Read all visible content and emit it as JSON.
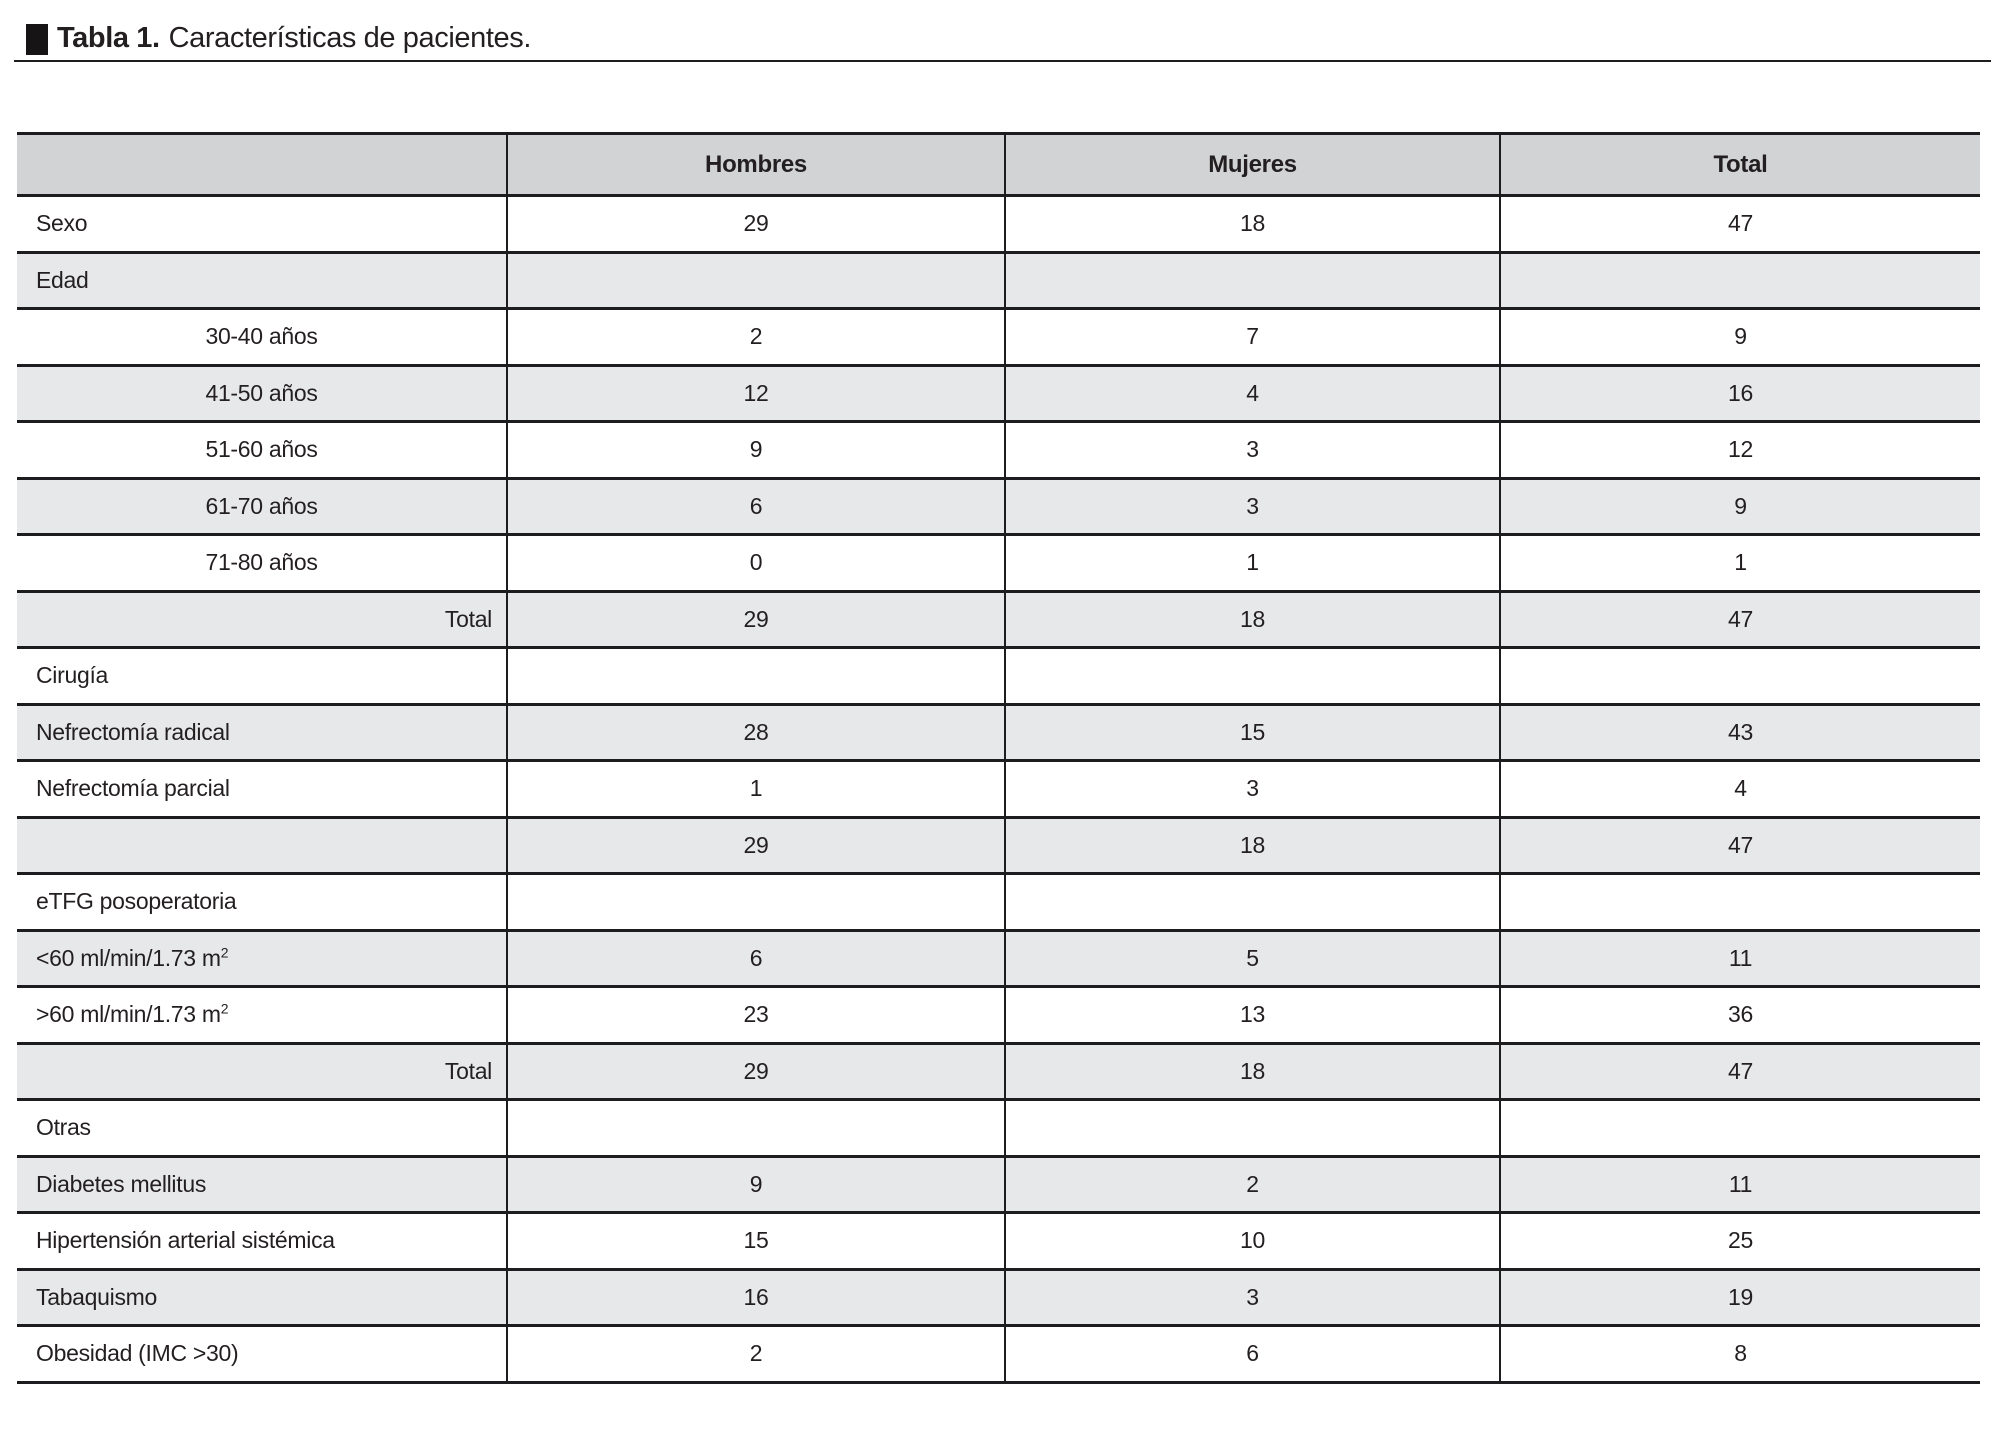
{
  "caption": {
    "number": "Tabla 1.",
    "title": "Características de pacientes."
  },
  "table": {
    "columns": [
      "",
      "Hombres",
      "Mujeres",
      "Total"
    ],
    "rows": [
      {
        "label": "Sexo",
        "align": "left",
        "values": [
          "29",
          "18",
          "47"
        ],
        "shaded": false
      },
      {
        "label": "Edad",
        "align": "left",
        "values": [
          "",
          "",
          ""
        ],
        "shaded": true
      },
      {
        "label": "30-40 años",
        "align": "center",
        "values": [
          "2",
          "7",
          "9"
        ],
        "shaded": false
      },
      {
        "label": "41-50 años",
        "align": "center",
        "values": [
          "12",
          "4",
          "16"
        ],
        "shaded": true
      },
      {
        "label": "51-60 años",
        "align": "center",
        "values": [
          "9",
          "3",
          "12"
        ],
        "shaded": false
      },
      {
        "label": "61-70 años",
        "align": "center",
        "values": [
          "6",
          "3",
          "9"
        ],
        "shaded": true
      },
      {
        "label": "71-80 años",
        "align": "center",
        "values": [
          "0",
          "1",
          "1"
        ],
        "shaded": false
      },
      {
        "label": "Total",
        "align": "right",
        "values": [
          "29",
          "18",
          "47"
        ],
        "shaded": true
      },
      {
        "label": "Cirugía",
        "align": "left",
        "values": [
          "",
          "",
          ""
        ],
        "shaded": false
      },
      {
        "label": "Nefrectomía radical",
        "align": "left",
        "values": [
          "28",
          "15",
          "43"
        ],
        "shaded": true
      },
      {
        "label": "Nefrectomía parcial",
        "align": "left",
        "values": [
          "1",
          "3",
          "4"
        ],
        "shaded": false
      },
      {
        "label": "",
        "align": "left",
        "values": [
          "29",
          "18",
          "47"
        ],
        "shaded": true
      },
      {
        "label": "eTFG posoperatoria",
        "align": "left",
        "values": [
          "",
          "",
          ""
        ],
        "shaded": false
      },
      {
        "label": "<60 ml/min/1.73 m",
        "label_sup": "2",
        "align": "left",
        "values": [
          "6",
          "5",
          "11"
        ],
        "shaded": true
      },
      {
        "label": ">60 ml/min/1.73 m",
        "label_sup": "2",
        "align": "left",
        "values": [
          "23",
          "13",
          "36"
        ],
        "shaded": false
      },
      {
        "label": "Total",
        "align": "right",
        "values": [
          "29",
          "18",
          "47"
        ],
        "shaded": true
      },
      {
        "label": "Otras",
        "align": "left",
        "values": [
          "",
          "",
          ""
        ],
        "shaded": false
      },
      {
        "label": "Diabetes mellitus",
        "align": "left",
        "values": [
          "9",
          "2",
          "11"
        ],
        "shaded": true
      },
      {
        "label": "Hipertensión arterial sistémica",
        "align": "left",
        "values": [
          "15",
          "10",
          "25"
        ],
        "shaded": false
      },
      {
        "label": "Tabaquismo",
        "align": "left",
        "values": [
          "16",
          "3",
          "19"
        ],
        "shaded": true
      },
      {
        "label": "Obesidad (IMC >30)",
        "align": "left",
        "values": [
          "2",
          "6",
          "8"
        ],
        "shaded": false
      }
    ]
  },
  "colors": {
    "text": "#231f20",
    "border": "#1d1d1f",
    "header_bg": "#d2d3d5",
    "shaded_row_bg": "#e7e8ea"
  }
}
